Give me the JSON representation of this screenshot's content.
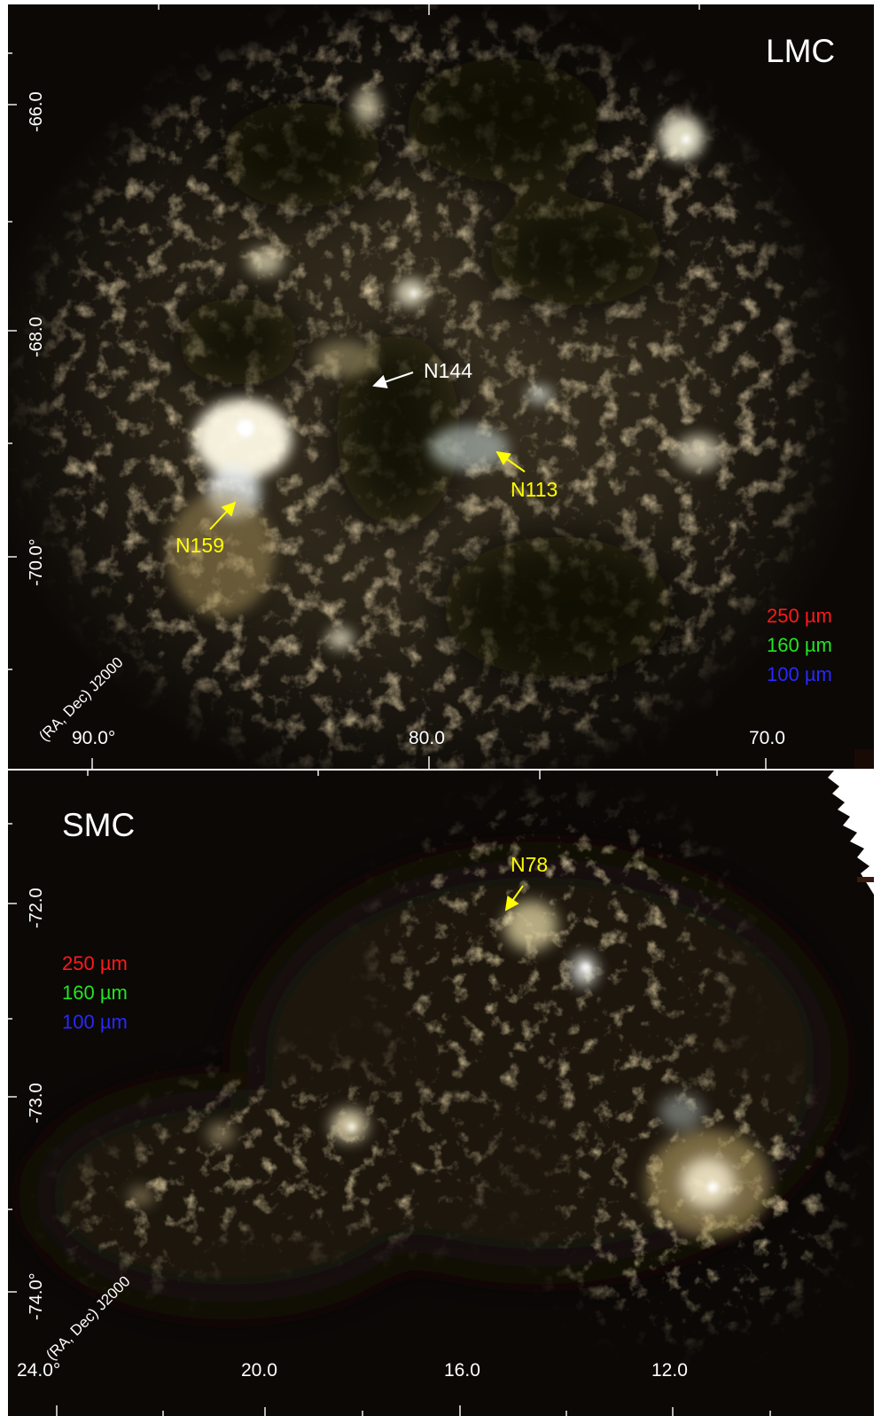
{
  "lmc": {
    "title": "LMC",
    "ra_ticks": [
      "90.0°",
      "80.0",
      "70.0"
    ],
    "dec_ticks": [
      "-66.0",
      "-68.0",
      "-70.0°"
    ],
    "frame_label": "(RA, Dec) J2000",
    "legend": [
      {
        "text": "250 µm",
        "color": "#ff1a1a"
      },
      {
        "text": "160 µm",
        "color": "#22e622"
      },
      {
        "text": "100 µm",
        "color": "#2828ff"
      }
    ],
    "sources": [
      {
        "name": "N144",
        "color": "#ffffff"
      },
      {
        "name": "N113",
        "color": "#ffff00"
      },
      {
        "name": "N159",
        "color": "#ffff00"
      }
    ]
  },
  "smc": {
    "title": "SMC",
    "ra_ticks": [
      "24.0°",
      "20.0",
      "16.0",
      "12.0"
    ],
    "dec_ticks": [
      "-72.0",
      "-73.0",
      "-74.0°"
    ],
    "frame_label": "(RA, Dec) J2000",
    "legend": [
      {
        "text": "250 µm",
        "color": "#ff1a1a"
      },
      {
        "text": "160 µm",
        "color": "#22e622"
      },
      {
        "text": "100 µm",
        "color": "#2828ff"
      }
    ],
    "sources": [
      {
        "name": "N78",
        "color": "#ffff00"
      }
    ]
  }
}
